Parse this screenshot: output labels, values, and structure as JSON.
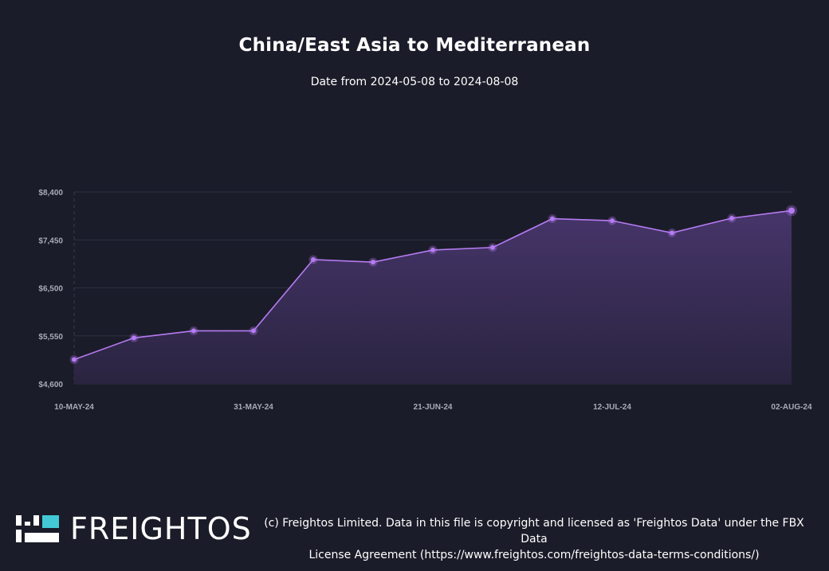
{
  "chart": {
    "title": "China/East Asia to Mediterranean",
    "subtitle": "Date from 2024-05-08 to 2024-08-08"
  },
  "colors": {
    "background": "#1b1c29",
    "line": "#b57bf2",
    "area": "#3b2e57",
    "grid": "#2e2f42",
    "tick_text": "#a9aab8",
    "logo_accent": "#43c9d6"
  },
  "chart_data": {
    "type": "area",
    "x": [
      "10-MAY-24",
      "17-MAY-24",
      "24-MAY-24",
      "31-MAY-24",
      "07-JUN-24",
      "14-JUN-24",
      "21-JUN-24",
      "28-JUN-24",
      "05-JUL-24",
      "12-JUL-24",
      "19-JUL-24",
      "26-JUL-24",
      "02-AUG-24"
    ],
    "x_tick_labels": [
      "10-MAY-24",
      "31-MAY-24",
      "21-JUN-24",
      "12-JUL-24",
      "02-AUG-24"
    ],
    "series": [
      {
        "values": [
          5080,
          5510,
          5650,
          5650,
          7060,
          7010,
          7250,
          7300,
          7870,
          7830,
          7590,
          7880,
          8030
        ]
      }
    ],
    "y_ticks": [
      "$8,400",
      "$7,450",
      "$6,500",
      "$5,550",
      "$4,600"
    ],
    "ylim": [
      4600,
      8400
    ],
    "grid": true,
    "legend": "none"
  },
  "footer": {
    "logo_text": "FREIGHTOS",
    "copyright_line1": "(c) Freightos Limited. Data in this file is copyright and licensed as 'Freightos Data' under the FBX Data",
    "copyright_line2": "License Agreement (https://www.freightos.com/freightos-data-terms-conditions/)"
  }
}
